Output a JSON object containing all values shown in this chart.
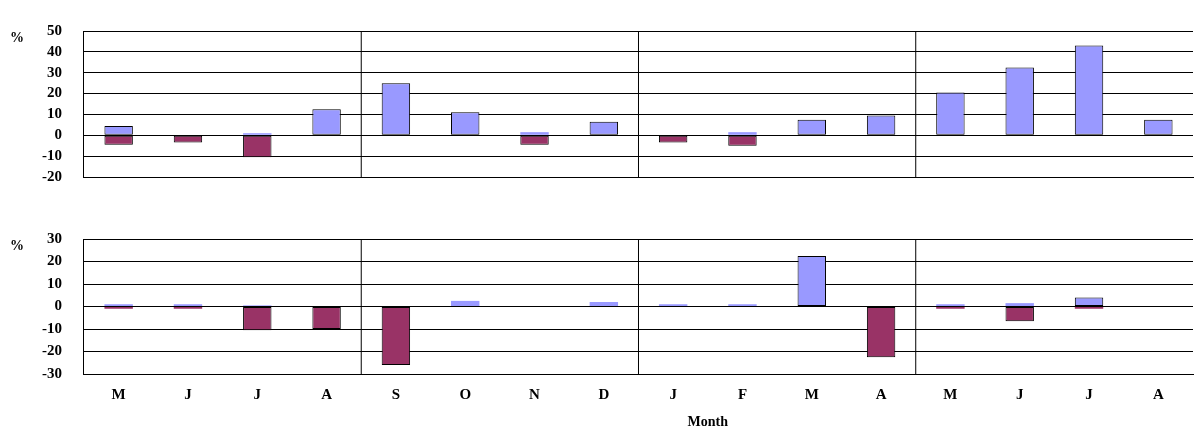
{
  "chart_data": [
    {
      "type": "bar",
      "stacked": true,
      "ylabel": "%",
      "categories": [
        null,
        null,
        null,
        null,
        null,
        null,
        null,
        null,
        null,
        null,
        null,
        null,
        null,
        null,
        null,
        null
      ],
      "series": [
        {
          "color": "#9999ff",
          "values": [
            4.5,
            null,
            1,
            12.5,
            25,
            11,
            1.5,
            6.5,
            null,
            1.5,
            7.5,
            9.5,
            20.5,
            32.5,
            43,
            7.5
          ]
        },
        {
          "color": "#993366",
          "values": [
            -4.5,
            -3.5,
            -10.5,
            null,
            null,
            null,
            -4.5,
            null,
            -3.5,
            -5,
            null,
            null,
            null,
            null,
            null,
            null
          ]
        }
      ],
      "ylim": [
        -20,
        50
      ],
      "yticks": [
        -20,
        -10,
        0,
        10,
        20,
        30,
        40,
        50
      ],
      "grid": "y",
      "tick_labels": "y"
    },
    {
      "type": "bar",
      "stacked": true,
      "ylabel": "%",
      "xlabel": "Month",
      "categories": [
        "M",
        "J",
        "J",
        "A",
        "S",
        "O",
        "N",
        "D",
        "J",
        "F",
        "M",
        "A",
        "M",
        "J",
        "J",
        "A"
      ],
      "series": [
        {
          "color": "#9999ff",
          "values": [
            1,
            1,
            0.5,
            null,
            null,
            2.5,
            null,
            2,
            1,
            1,
            22.5,
            null,
            1,
            1.5,
            4,
            null
          ]
        },
        {
          "color": "#993366",
          "values": [
            -1,
            -1,
            -10.5,
            -10,
            -26,
            null,
            null,
            null,
            null,
            null,
            null,
            -22.5,
            -1,
            -6.5,
            -1,
            null
          ]
        }
      ],
      "ylim": [
        -30,
        30
      ],
      "yticks": [
        -30,
        -20,
        -10,
        0,
        10,
        20,
        30
      ],
      "grid": "y"
    }
  ]
}
